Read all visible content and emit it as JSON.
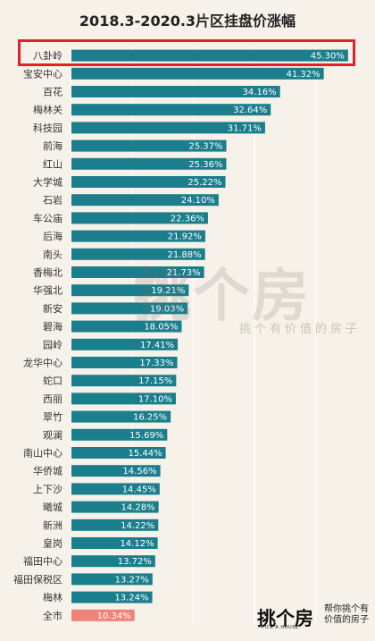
{
  "chart_data": {
    "type": "bar",
    "orientation": "horizontal",
    "title": "2018.3-2020.3片区挂盘价涨幅",
    "categories": [
      "八卦岭",
      "宝安中心",
      "百花",
      "梅林关",
      "科技园",
      "前海",
      "红山",
      "大学城",
      "石岩",
      "车公庙",
      "后海",
      "南头",
      "香梅北",
      "华强北",
      "新安",
      "碧海",
      "园岭",
      "龙华中心",
      "蛇口",
      "西丽",
      "翠竹",
      "观澜",
      "南山中心",
      "华侨城",
      "上下沙",
      "曦城",
      "新洲",
      "皇岗",
      "福田中心",
      "福田保税区",
      "梅林",
      "全市"
    ],
    "values": [
      45.3,
      41.32,
      34.16,
      32.64,
      31.71,
      25.37,
      25.36,
      25.22,
      24.1,
      22.36,
      21.92,
      21.88,
      21.73,
      19.21,
      19.03,
      18.05,
      17.41,
      17.33,
      17.15,
      17.1,
      16.25,
      15.69,
      15.44,
      14.56,
      14.45,
      14.28,
      14.22,
      14.12,
      13.72,
      13.27,
      13.24,
      10.34
    ],
    "value_labels": [
      "45.30%",
      "41.32%",
      "34.16%",
      "32.64%",
      "31.71%",
      "25.37%",
      "25.36%",
      "25.22%",
      "24.10%",
      "22.36%",
      "21.92%",
      "21.88%",
      "21.73%",
      "19.21%",
      "19.03%",
      "18.05%",
      "17.41%",
      "17.33%",
      "17.15%",
      "17.10%",
      "16.25%",
      "15.69%",
      "15.44%",
      "14.56%",
      "14.45%",
      "14.28%",
      "14.22%",
      "14.12%",
      "13.72%",
      "13.27%",
      "13.24%",
      "10.34%"
    ],
    "xlim": [
      0,
      50
    ],
    "grid": true,
    "colors": {
      "bar": "#1b7e8c",
      "highlight_bar": "#f08279",
      "highlight_border": "#e0202a",
      "background": "#f6f2e9"
    },
    "highlighted_category": "八卦岭",
    "special_category": "全市"
  },
  "watermark": {
    "text": "挑个房",
    "sub": "挑个有价值的房子"
  },
  "logo": {
    "text": "挑个房",
    "sub": "PICK A HOUSE",
    "slogan": "帮你挑个有价值的房子"
  }
}
